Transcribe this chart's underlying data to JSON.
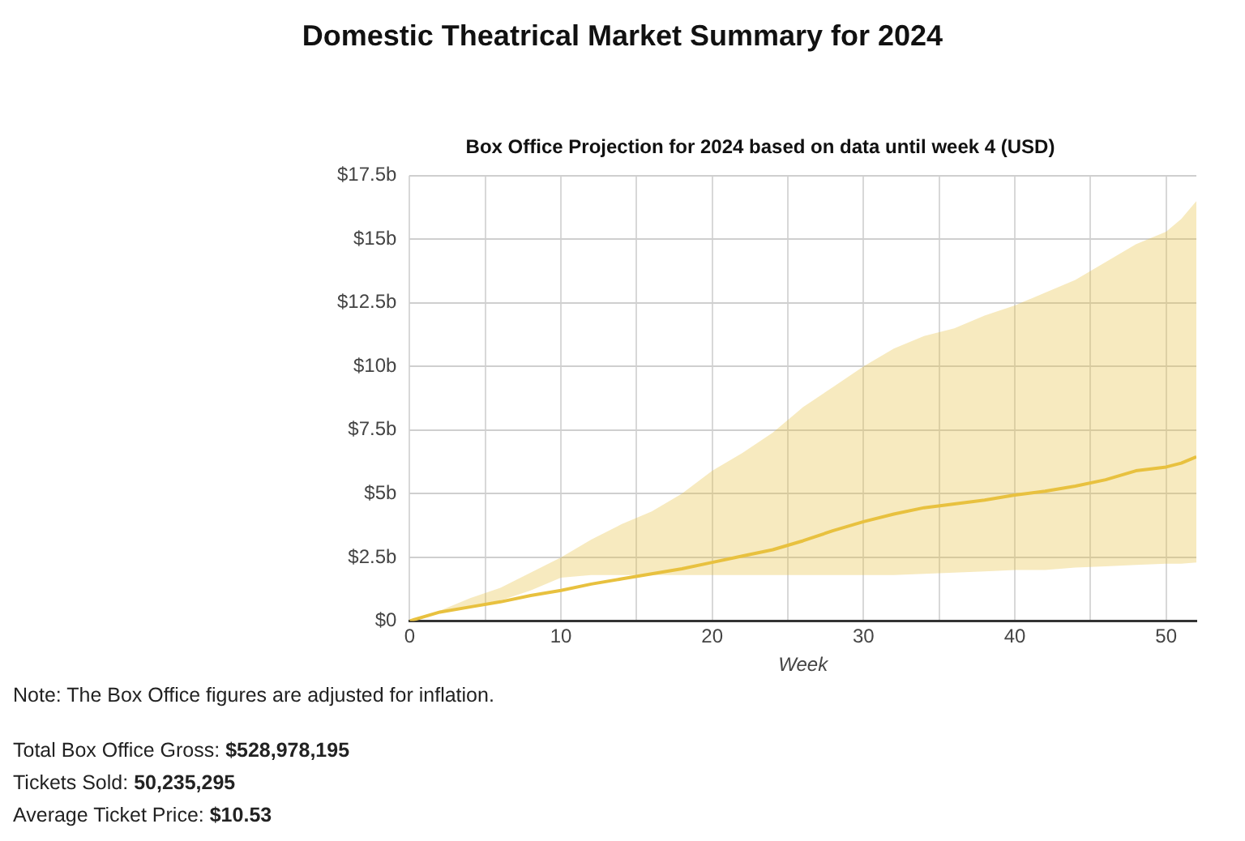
{
  "chart_data": {
    "type": "line",
    "title": "Domestic Theatrical Market Summary for 2024",
    "subtitle": "Box Office Projection for 2024 based on data until week 4 (USD)",
    "xlabel": "Week",
    "x": [
      0,
      2,
      4,
      6,
      8,
      10,
      12,
      14,
      16,
      18,
      20,
      22,
      24,
      26,
      28,
      30,
      32,
      34,
      36,
      38,
      40,
      42,
      44,
      46,
      48,
      50,
      51,
      52
    ],
    "series": [
      {
        "color": "#e8c13f",
        "values": [
          0,
          0.35,
          0.55,
          0.75,
          1.0,
          1.2,
          1.45,
          1.65,
          1.85,
          2.05,
          2.3,
          2.55,
          2.8,
          3.15,
          3.55,
          3.9,
          4.2,
          4.45,
          4.6,
          4.75,
          4.95,
          5.1,
          5.3,
          5.55,
          5.9,
          6.05,
          6.2,
          6.45
        ],
        "lower": [
          0,
          0.35,
          0.55,
          0.8,
          1.2,
          1.7,
          1.8,
          1.8,
          1.8,
          1.8,
          1.8,
          1.8,
          1.8,
          1.8,
          1.8,
          1.8,
          1.8,
          1.85,
          1.9,
          1.95,
          2.0,
          2.0,
          2.1,
          2.15,
          2.2,
          2.25,
          2.25,
          2.3
        ],
        "upper": [
          0,
          0.4,
          0.9,
          1.3,
          1.9,
          2.5,
          3.2,
          3.8,
          4.3,
          5.0,
          5.9,
          6.6,
          7.4,
          8.4,
          9.2,
          10.0,
          10.7,
          11.2,
          11.5,
          12.0,
          12.4,
          12.9,
          13.4,
          14.1,
          14.8,
          15.3,
          15.8,
          16.5
        ]
      }
    ],
    "xlim": [
      0,
      52
    ],
    "xticks": [
      0,
      {
        "value": 5,
        "label": null
      },
      10,
      {
        "value": 15,
        "label": null
      },
      20,
      {
        "value": 25,
        "label": null
      },
      30,
      {
        "value": 35,
        "label": null
      },
      40,
      {
        "value": 45,
        "label": null
      },
      50
    ],
    "ylim": [
      0,
      17.5
    ],
    "yticks": [
      {
        "value": 0,
        "label": "$0"
      },
      {
        "value": 2.5,
        "label": "$2.5b"
      },
      {
        "value": 5,
        "label": "$5b"
      },
      {
        "value": 7.5,
        "label": "$7.5b"
      },
      {
        "value": 10,
        "label": "$10b"
      },
      {
        "value": 12.5,
        "label": "$12.5b"
      },
      {
        "value": 15,
        "label": "$15b"
      },
      {
        "value": 17.5,
        "label": "$17.5b"
      }
    ],
    "grid": true,
    "legend": false,
    "marker": "none",
    "line_style": "solid",
    "annotations": [
      "Note: The Box Office figures are adjusted for inflation.",
      "Total Box Office Gross: $528,978,195",
      "Tickets Sold: 50,235,295",
      "Average Ticket Price: $10.53"
    ]
  }
}
